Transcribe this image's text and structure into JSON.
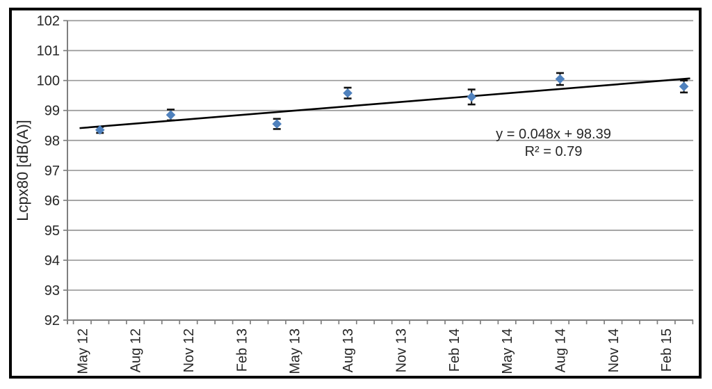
{
  "chart_data": {
    "type": "scatter",
    "title": "",
    "xlabel": "",
    "ylabel": "Lcpx80 [dB(A)]",
    "ylim": [
      92,
      102
    ],
    "ytick_step": 1,
    "grid": true,
    "legend": "none",
    "x_axis": {
      "unit": "months",
      "tick_labels": [
        "May 12",
        "Aug 12",
        "Nov 12",
        "Feb 13",
        "May 13",
        "Aug 13",
        "Nov 13",
        "Feb 14",
        "May 14",
        "Aug 14",
        "Nov 14",
        "Feb 15"
      ],
      "label_interval_months": 3,
      "minor_tick_interval_months": 1,
      "months_span": [
        -0.84,
        34.53
      ]
    },
    "series": [
      {
        "name": "Lcpx80",
        "marker": "diamond",
        "error_bars": true,
        "points": [
          {
            "x_label": "Jun 12",
            "month": 1,
            "value": 98.35,
            "error": 0.1
          },
          {
            "x_label": "Oct 12",
            "month": 5,
            "value": 98.85,
            "error": 0.18
          },
          {
            "x_label": "Apr 13",
            "month": 11,
            "value": 98.55,
            "error": 0.17
          },
          {
            "x_label": "Aug 13",
            "month": 15,
            "value": 99.58,
            "error": 0.18
          },
          {
            "x_label": "Mar 14",
            "month": 22,
            "value": 99.45,
            "error": 0.25
          },
          {
            "x_label": "Aug 14",
            "month": 27,
            "value": 100.05,
            "error": 0.2
          },
          {
            "x_label": "Mar 15",
            "month": 34,
            "value": 99.8,
            "error": 0.2
          }
        ]
      }
    ],
    "trendline": {
      "equation": "y = 0.048x + 98.39",
      "r_squared": "R² = 0.79",
      "start": {
        "month": -0.15,
        "value": 98.41
      },
      "end": {
        "month": 34.35,
        "value": 100.07
      }
    },
    "colors": {
      "marker": "#4F81BD",
      "trendline": "#000000",
      "error_bar": "#111111",
      "grid": "#999999",
      "axis": "#7f7f7f",
      "text": "#262626",
      "frame": "#000000"
    }
  }
}
